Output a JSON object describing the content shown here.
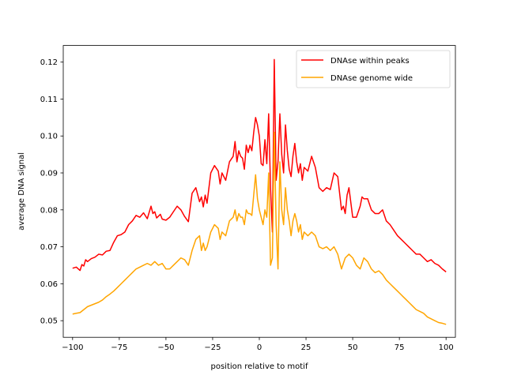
{
  "chart_data": {
    "type": "line",
    "title": "",
    "xlabel": "position relative to motif",
    "ylabel": "average DNA signal",
    "xlim": [
      -105,
      105
    ],
    "ylim": [
      0.0455,
      0.1245
    ],
    "xticks": [
      -100,
      -75,
      -50,
      -25,
      0,
      25,
      50,
      75,
      100
    ],
    "yticks": [
      0.05,
      0.06,
      0.07,
      0.08,
      0.09,
      0.1,
      0.11,
      0.12
    ],
    "ytick_labels": [
      "0.05",
      "0.06",
      "0.07",
      "0.08",
      "0.09",
      "0.10",
      "0.11",
      "0.12"
    ],
    "grid": false,
    "legend_position": "top-right",
    "series": [
      {
        "name": "DNAse within peaks",
        "color": "#ff0000",
        "points": [
          [
            -100,
            0.0642
          ],
          [
            -98,
            0.0645
          ],
          [
            -96,
            0.0636
          ],
          [
            -95,
            0.0652
          ],
          [
            -94,
            0.0648
          ],
          [
            -93,
            0.0665
          ],
          [
            -92,
            0.066
          ],
          [
            -90,
            0.0668
          ],
          [
            -88,
            0.0672
          ],
          [
            -86,
            0.068
          ],
          [
            -84,
            0.0678
          ],
          [
            -82,
            0.0688
          ],
          [
            -80,
            0.069
          ],
          [
            -78,
            0.0712
          ],
          [
            -76,
            0.073
          ],
          [
            -74,
            0.0733
          ],
          [
            -72,
            0.074
          ],
          [
            -70,
            0.076
          ],
          [
            -68,
            0.077
          ],
          [
            -66,
            0.0785
          ],
          [
            -64,
            0.078
          ],
          [
            -62,
            0.0792
          ],
          [
            -60,
            0.0776
          ],
          [
            -58,
            0.081
          ],
          [
            -57,
            0.079
          ],
          [
            -56,
            0.0795
          ],
          [
            -55,
            0.0778
          ],
          [
            -53,
            0.0788
          ],
          [
            -52,
            0.0775
          ],
          [
            -50,
            0.0772
          ],
          [
            -48,
            0.078
          ],
          [
            -46,
            0.0795
          ],
          [
            -44,
            0.081
          ],
          [
            -42,
            0.08
          ],
          [
            -40,
            0.0782
          ],
          [
            -38,
            0.0768
          ],
          [
            -36,
            0.0845
          ],
          [
            -34,
            0.086
          ],
          [
            -32,
            0.0822
          ],
          [
            -31,
            0.0835
          ],
          [
            -30,
            0.0808
          ],
          [
            -29,
            0.084
          ],
          [
            -28,
            0.0818
          ],
          [
            -26,
            0.09
          ],
          [
            -24,
            0.092
          ],
          [
            -22,
            0.0905
          ],
          [
            -21,
            0.087
          ],
          [
            -20,
            0.09
          ],
          [
            -18,
            0.088
          ],
          [
            -16,
            0.093
          ],
          [
            -14,
            0.0945
          ],
          [
            -13,
            0.0985
          ],
          [
            -12,
            0.093
          ],
          [
            -11,
            0.096
          ],
          [
            -10,
            0.0945
          ],
          [
            -9,
            0.094
          ],
          [
            -8,
            0.091
          ],
          [
            -7,
            0.0975
          ],
          [
            -6,
            0.0955
          ],
          [
            -5,
            0.0975
          ],
          [
            -4,
            0.096
          ],
          [
            -3,
            0.101
          ],
          [
            -2,
            0.105
          ],
          [
            -1,
            0.103
          ],
          [
            0,
            0.1
          ],
          [
            1,
            0.0925
          ],
          [
            2,
            0.092
          ],
          [
            3,
            0.099
          ],
          [
            4,
            0.0925
          ],
          [
            5,
            0.106
          ],
          [
            6,
            0.086
          ],
          [
            7,
            0.074
          ],
          [
            8,
            0.1207
          ],
          [
            9,
            0.088
          ],
          [
            10,
            0.093
          ],
          [
            11,
            0.106
          ],
          [
            12,
            0.095
          ],
          [
            13,
            0.09
          ],
          [
            14,
            0.103
          ],
          [
            15,
            0.096
          ],
          [
            16,
            0.091
          ],
          [
            17,
            0.089
          ],
          [
            18,
            0.0945
          ],
          [
            19,
            0.098
          ],
          [
            20,
            0.093
          ],
          [
            21,
            0.09
          ],
          [
            22,
            0.0925
          ],
          [
            23,
            0.088
          ],
          [
            24,
            0.0915
          ],
          [
            26,
            0.0905
          ],
          [
            28,
            0.0945
          ],
          [
            30,
            0.0915
          ],
          [
            32,
            0.086
          ],
          [
            34,
            0.085
          ],
          [
            36,
            0.086
          ],
          [
            38,
            0.0855
          ],
          [
            40,
            0.09
          ],
          [
            42,
            0.089
          ],
          [
            44,
            0.08
          ],
          [
            45,
            0.081
          ],
          [
            46,
            0.079
          ],
          [
            47,
            0.084
          ],
          [
            48,
            0.086
          ],
          [
            50,
            0.078
          ],
          [
            52,
            0.078
          ],
          [
            54,
            0.081
          ],
          [
            55,
            0.0835
          ],
          [
            56,
            0.083
          ],
          [
            58,
            0.083
          ],
          [
            60,
            0.08
          ],
          [
            62,
            0.079
          ],
          [
            64,
            0.079
          ],
          [
            66,
            0.08
          ],
          [
            68,
            0.077
          ],
          [
            70,
            0.076
          ],
          [
            72,
            0.0745
          ],
          [
            74,
            0.073
          ],
          [
            76,
            0.072
          ],
          [
            78,
            0.071
          ],
          [
            80,
            0.07
          ],
          [
            82,
            0.069
          ],
          [
            84,
            0.068
          ],
          [
            86,
            0.068
          ],
          [
            88,
            0.067
          ],
          [
            90,
            0.066
          ],
          [
            92,
            0.0665
          ],
          [
            94,
            0.0655
          ],
          [
            96,
            0.065
          ],
          [
            98,
            0.064
          ],
          [
            100,
            0.0632
          ]
        ]
      },
      {
        "name": "DNAse genome wide",
        "color": "#ffa500",
        "points": [
          [
            -100,
            0.0518
          ],
          [
            -98,
            0.052
          ],
          [
            -96,
            0.0522
          ],
          [
            -94,
            0.053
          ],
          [
            -92,
            0.0538
          ],
          [
            -90,
            0.0542
          ],
          [
            -88,
            0.0546
          ],
          [
            -86,
            0.055
          ],
          [
            -84,
            0.0556
          ],
          [
            -82,
            0.0565
          ],
          [
            -80,
            0.0572
          ],
          [
            -78,
            0.058
          ],
          [
            -76,
            0.059
          ],
          [
            -74,
            0.06
          ],
          [
            -72,
            0.061
          ],
          [
            -70,
            0.062
          ],
          [
            -68,
            0.063
          ],
          [
            -66,
            0.064
          ],
          [
            -64,
            0.0645
          ],
          [
            -62,
            0.065
          ],
          [
            -60,
            0.0655
          ],
          [
            -58,
            0.065
          ],
          [
            -56,
            0.066
          ],
          [
            -54,
            0.065
          ],
          [
            -52,
            0.0655
          ],
          [
            -50,
            0.064
          ],
          [
            -48,
            0.064
          ],
          [
            -46,
            0.065
          ],
          [
            -44,
            0.066
          ],
          [
            -42,
            0.067
          ],
          [
            -40,
            0.0665
          ],
          [
            -38,
            0.065
          ],
          [
            -36,
            0.069
          ],
          [
            -34,
            0.072
          ],
          [
            -32,
            0.073
          ],
          [
            -31,
            0.069
          ],
          [
            -30,
            0.071
          ],
          [
            -29,
            0.069
          ],
          [
            -28,
            0.07
          ],
          [
            -26,
            0.074
          ],
          [
            -24,
            0.076
          ],
          [
            -22,
            0.075
          ],
          [
            -21,
            0.072
          ],
          [
            -20,
            0.074
          ],
          [
            -18,
            0.073
          ],
          [
            -16,
            0.077
          ],
          [
            -14,
            0.078
          ],
          [
            -13,
            0.08
          ],
          [
            -12,
            0.077
          ],
          [
            -11,
            0.079
          ],
          [
            -10,
            0.078
          ],
          [
            -9,
            0.078
          ],
          [
            -8,
            0.076
          ],
          [
            -7,
            0.08
          ],
          [
            -6,
            0.079
          ],
          [
            -5,
            0.079
          ],
          [
            -4,
            0.0785
          ],
          [
            -3,
            0.084
          ],
          [
            -2,
            0.0895
          ],
          [
            -1,
            0.083
          ],
          [
            0,
            0.08
          ],
          [
            1,
            0.078
          ],
          [
            2,
            0.076
          ],
          [
            3,
            0.08
          ],
          [
            4,
            0.078
          ],
          [
            5,
            0.09
          ],
          [
            6,
            0.065
          ],
          [
            7,
            0.067
          ],
          [
            8,
            0.101
          ],
          [
            9,
            0.076
          ],
          [
            10,
            0.064
          ],
          [
            11,
            0.093
          ],
          [
            12,
            0.08
          ],
          [
            13,
            0.076
          ],
          [
            14,
            0.086
          ],
          [
            15,
            0.08
          ],
          [
            16,
            0.077
          ],
          [
            17,
            0.073
          ],
          [
            18,
            0.077
          ],
          [
            19,
            0.079
          ],
          [
            20,
            0.077
          ],
          [
            21,
            0.074
          ],
          [
            22,
            0.076
          ],
          [
            23,
            0.072
          ],
          [
            24,
            0.074
          ],
          [
            26,
            0.073
          ],
          [
            28,
            0.074
          ],
          [
            30,
            0.073
          ],
          [
            32,
            0.07
          ],
          [
            34,
            0.0695
          ],
          [
            36,
            0.07
          ],
          [
            38,
            0.069
          ],
          [
            40,
            0.07
          ],
          [
            42,
            0.068
          ],
          [
            44,
            0.064
          ],
          [
            46,
            0.067
          ],
          [
            48,
            0.068
          ],
          [
            50,
            0.067
          ],
          [
            52,
            0.065
          ],
          [
            54,
            0.064
          ],
          [
            56,
            0.067
          ],
          [
            58,
            0.066
          ],
          [
            60,
            0.064
          ],
          [
            62,
            0.063
          ],
          [
            64,
            0.0635
          ],
          [
            66,
            0.0625
          ],
          [
            68,
            0.061
          ],
          [
            70,
            0.06
          ],
          [
            72,
            0.059
          ],
          [
            74,
            0.058
          ],
          [
            76,
            0.057
          ],
          [
            78,
            0.056
          ],
          [
            80,
            0.055
          ],
          [
            82,
            0.054
          ],
          [
            84,
            0.053
          ],
          [
            86,
            0.0525
          ],
          [
            88,
            0.052
          ],
          [
            90,
            0.051
          ],
          [
            92,
            0.0505
          ],
          [
            94,
            0.05
          ],
          [
            96,
            0.0495
          ],
          [
            98,
            0.0493
          ],
          [
            100,
            0.049
          ]
        ]
      }
    ]
  }
}
